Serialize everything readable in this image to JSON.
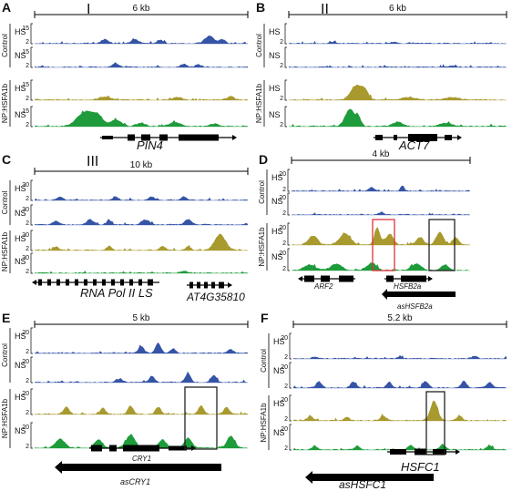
{
  "colors": {
    "control": "#3554a6",
    "hs": "#a89a2e",
    "ns": "#1e9b3a",
    "box_black": "#222222",
    "box_red": "#e0323c"
  },
  "panels": [
    {
      "letter": "A",
      "roman": "I",
      "scale": "6 kb",
      "group_labels": [
        "Control",
        "NP:HSFA1b"
      ],
      "tracks": [
        {
          "cond": "HS",
          "group": "control",
          "max": "15",
          "min": "2"
        },
        {
          "cond": "NS",
          "group": "control",
          "max": "15",
          "min": "2"
        },
        {
          "cond": "HS",
          "group": "np",
          "max": "15",
          "min": "2"
        },
        {
          "cond": "NS",
          "group": "np",
          "max": "15",
          "min": "2"
        }
      ],
      "genes": [
        "PIN4"
      ]
    },
    {
      "letter": "B",
      "roman": "II",
      "scale": "6 kb",
      "group_labels": [
        "Control",
        "NP:HSFA1b"
      ],
      "tracks": [
        {
          "cond": "HS",
          "group": "control",
          "max": "",
          "min": "2"
        },
        {
          "cond": "NS",
          "group": "control",
          "max": "",
          "min": "2"
        },
        {
          "cond": "HS",
          "group": "np",
          "max": "",
          "min": "2"
        },
        {
          "cond": "NS",
          "group": "np",
          "max": "",
          "min": "2"
        }
      ],
      "genes": [
        "ACT7"
      ]
    },
    {
      "letter": "C",
      "roman": "III",
      "scale": "10 kb",
      "group_labels": [
        "Control",
        "NP:HSFA1b"
      ],
      "tracks": [
        {
          "cond": "HS",
          "group": "control",
          "max": "30",
          "min": "2"
        },
        {
          "cond": "NS",
          "group": "control",
          "max": "30",
          "min": "2"
        },
        {
          "cond": "HS",
          "group": "np",
          "max": "30",
          "min": "2"
        },
        {
          "cond": "NS",
          "group": "np",
          "max": "30",
          "min": "2"
        }
      ],
      "genes": [
        "RNA Pol II LS",
        "AT4G35810"
      ]
    },
    {
      "letter": "D",
      "roman": "",
      "scale": "4 kb",
      "group_labels": [
        "Control",
        "NP:HSFA1b"
      ],
      "tracks": [
        {
          "cond": "HS",
          "group": "control",
          "max": "20",
          "min": "2"
        },
        {
          "cond": "NS",
          "group": "control",
          "max": "20",
          "min": "2"
        },
        {
          "cond": "HS",
          "group": "np",
          "max": "20",
          "min": "2"
        },
        {
          "cond": "NS",
          "group": "np",
          "max": "20",
          "min": "2"
        }
      ],
      "genes": [
        "ARF2",
        "HSFB2a",
        "asHSFB2a"
      ]
    },
    {
      "letter": "E",
      "roman": "",
      "scale": "5 kb",
      "group_labels": [
        "Control",
        "NP:HSFA1b"
      ],
      "tracks": [
        {
          "cond": "HS",
          "group": "control",
          "max": "20",
          "min": "2"
        },
        {
          "cond": "NS",
          "group": "control",
          "max": "20",
          "min": "2"
        },
        {
          "cond": "HS",
          "group": "np",
          "max": "20",
          "min": "2"
        },
        {
          "cond": "NS",
          "group": "np",
          "max": "20",
          "min": "2"
        }
      ],
      "genes": [
        "CRY1",
        "asCRY1"
      ]
    },
    {
      "letter": "F",
      "roman": "",
      "scale": "5.2 kb",
      "group_labels": [
        "Control",
        "NP:HSFA1b"
      ],
      "tracks": [
        {
          "cond": "HS",
          "group": "control",
          "max": "20",
          "min": "2"
        },
        {
          "cond": "NS",
          "group": "control",
          "max": "20",
          "min": "2"
        },
        {
          "cond": "HS",
          "group": "np",
          "max": "20",
          "min": "2"
        },
        {
          "cond": "NS",
          "group": "np",
          "max": "20",
          "min": "2"
        }
      ],
      "genes": [
        "HSFC1",
        "asHSFC1"
      ]
    }
  ]
}
